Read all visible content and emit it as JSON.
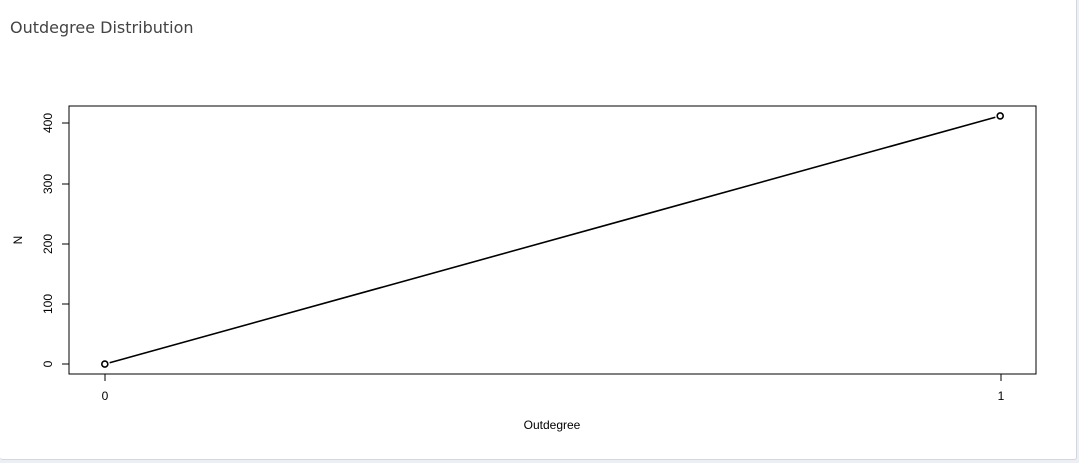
{
  "panel": {
    "title": "Outdegree Distribution"
  },
  "chart_data": {
    "type": "line",
    "title": "",
    "xlabel": "Outdegree",
    "ylabel": "N",
    "x": [
      0,
      1
    ],
    "y": [
      1,
      411
    ],
    "xticks": [
      "0",
      "1"
    ],
    "yticks": [
      "0",
      "100",
      "200",
      "300",
      "400"
    ],
    "xlim": [
      -0.04,
      1.04
    ],
    "ylim": [
      -15.4,
      427.4
    ],
    "markers": "open-circle",
    "grid": false,
    "color": "#000000"
  }
}
